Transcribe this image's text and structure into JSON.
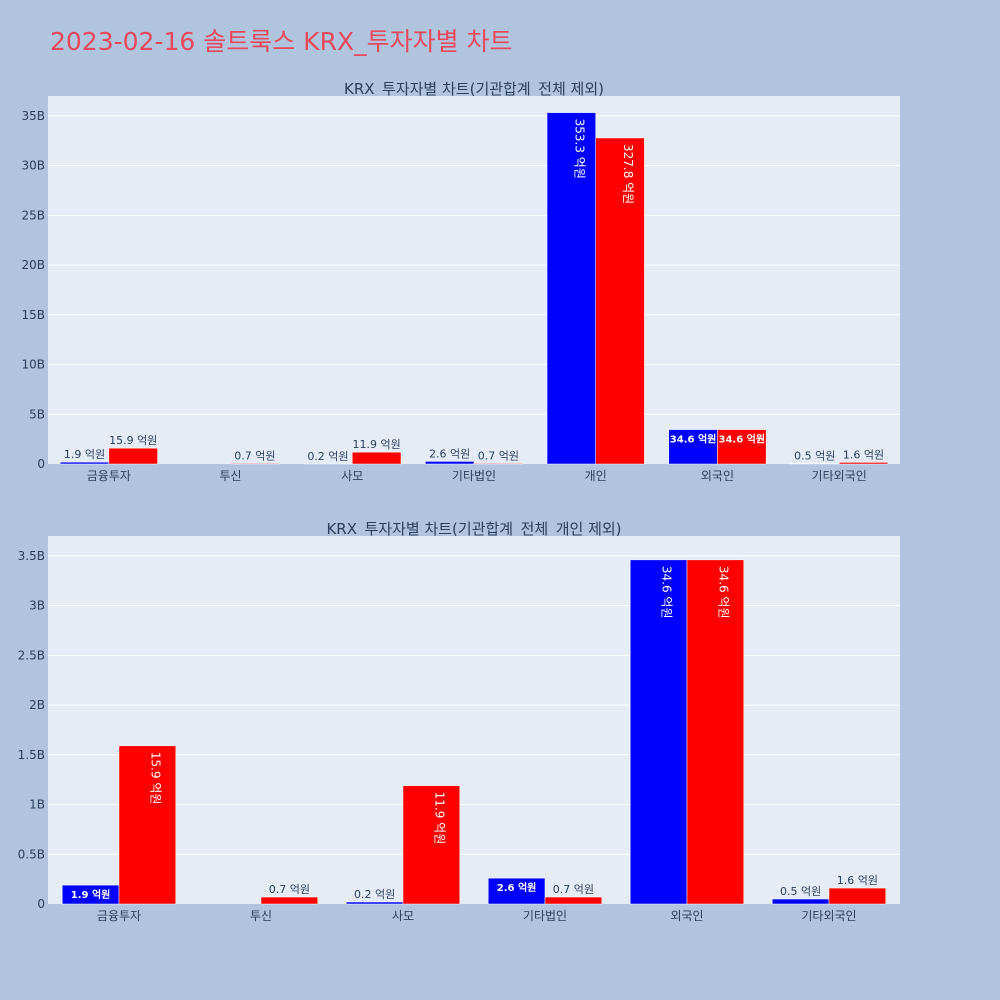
{
  "page": {
    "title": "2023-02-16 솔트룩스 KRX_투자자별 차트"
  },
  "colors": {
    "series1": "#0000ff",
    "series2": "#ff0000",
    "plot_bg": "#e5ecf6",
    "page_bg": "#b0c4de",
    "title": "#e8485b"
  },
  "chart_data": [
    {
      "type": "bar",
      "title": "KRX_투자자별 차트(기관합계_전체 제외)",
      "categories": [
        "금융투자",
        "투신",
        "사모",
        "기타법인",
        "개인",
        "외국인",
        "기타외국인"
      ],
      "ylim": [
        0,
        37
      ],
      "yticks": [
        0,
        5,
        10,
        15,
        20,
        25,
        30,
        35
      ],
      "ytick_labels": [
        "0",
        "5B",
        "10B",
        "15B",
        "20B",
        "25B",
        "30B",
        "35B"
      ],
      "grid": true,
      "series": [
        {
          "values": [
            0.19,
            0.0,
            0.02,
            0.26,
            35.33,
            3.46,
            0.05
          ],
          "labels": [
            "1.9 억원",
            "",
            "0.2 억원",
            "2.6 억원",
            "353.3 억원",
            "34.6 억원",
            "0.5 억원"
          ]
        },
        {
          "values": [
            1.59,
            0.07,
            1.19,
            0.07,
            32.78,
            3.46,
            0.16
          ],
          "labels": [
            "15.9 억원",
            "0.7 억원",
            "11.9 억원",
            "0.7 억원",
            "327.8 억원",
            "34.6 억원",
            "1.6 억원"
          ]
        }
      ]
    },
    {
      "type": "bar",
      "title": "KRX_투자자별 차트(기관합계_전체_개인 제외)",
      "categories": [
        "금융투자",
        "투신",
        "사모",
        "기타법인",
        "외국인",
        "기타외국인"
      ],
      "ylim": [
        0,
        3.7
      ],
      "yticks": [
        0,
        0.5,
        1,
        1.5,
        2,
        2.5,
        3,
        3.5
      ],
      "ytick_labels": [
        "0",
        "0.5B",
        "1B",
        "1.5B",
        "2B",
        "2.5B",
        "3B",
        "3.5B"
      ],
      "grid": true,
      "series": [
        {
          "values": [
            0.19,
            0.0,
            0.02,
            0.26,
            3.46,
            0.05
          ],
          "labels": [
            "1.9 억원",
            "",
            "0.2 억원",
            "2.6 억원",
            "34.6 억원",
            "0.5 억원"
          ]
        },
        {
          "values": [
            1.59,
            0.07,
            1.19,
            0.07,
            3.46,
            0.16
          ],
          "labels": [
            "15.9 억원",
            "0.7 억원",
            "11.9 억원",
            "0.7 억원",
            "34.6 억원",
            "1.6 억원"
          ]
        }
      ]
    }
  ]
}
